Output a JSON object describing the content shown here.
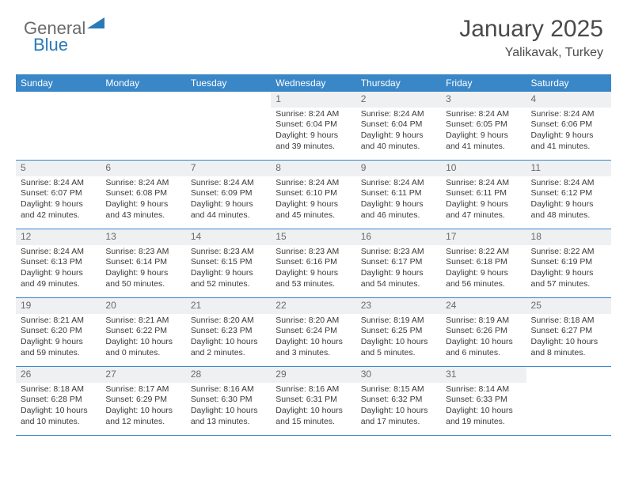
{
  "brand": {
    "part1": "General",
    "part2": "Blue"
  },
  "title": "January 2025",
  "location": "Yalikavak, Turkey",
  "colors": {
    "header_bar": "#3a87c8",
    "header_text": "#ffffff",
    "datenum_bg": "#eef0f2",
    "body_bg": "#ffffff",
    "text": "#3a3a3a",
    "rule": "#3a87c8"
  },
  "day_headers": [
    "Sunday",
    "Monday",
    "Tuesday",
    "Wednesday",
    "Thursday",
    "Friday",
    "Saturday"
  ],
  "layout": {
    "first_weekday_index": 3,
    "days_in_month": 31
  },
  "days": {
    "1": {
      "sunrise": "8:24 AM",
      "sunset": "6:04 PM",
      "daylight": "9 hours and 39 minutes."
    },
    "2": {
      "sunrise": "8:24 AM",
      "sunset": "6:04 PM",
      "daylight": "9 hours and 40 minutes."
    },
    "3": {
      "sunrise": "8:24 AM",
      "sunset": "6:05 PM",
      "daylight": "9 hours and 41 minutes."
    },
    "4": {
      "sunrise": "8:24 AM",
      "sunset": "6:06 PM",
      "daylight": "9 hours and 41 minutes."
    },
    "5": {
      "sunrise": "8:24 AM",
      "sunset": "6:07 PM",
      "daylight": "9 hours and 42 minutes."
    },
    "6": {
      "sunrise": "8:24 AM",
      "sunset": "6:08 PM",
      "daylight": "9 hours and 43 minutes."
    },
    "7": {
      "sunrise": "8:24 AM",
      "sunset": "6:09 PM",
      "daylight": "9 hours and 44 minutes."
    },
    "8": {
      "sunrise": "8:24 AM",
      "sunset": "6:10 PM",
      "daylight": "9 hours and 45 minutes."
    },
    "9": {
      "sunrise": "8:24 AM",
      "sunset": "6:11 PM",
      "daylight": "9 hours and 46 minutes."
    },
    "10": {
      "sunrise": "8:24 AM",
      "sunset": "6:11 PM",
      "daylight": "9 hours and 47 minutes."
    },
    "11": {
      "sunrise": "8:24 AM",
      "sunset": "6:12 PM",
      "daylight": "9 hours and 48 minutes."
    },
    "12": {
      "sunrise": "8:24 AM",
      "sunset": "6:13 PM",
      "daylight": "9 hours and 49 minutes."
    },
    "13": {
      "sunrise": "8:23 AM",
      "sunset": "6:14 PM",
      "daylight": "9 hours and 50 minutes."
    },
    "14": {
      "sunrise": "8:23 AM",
      "sunset": "6:15 PM",
      "daylight": "9 hours and 52 minutes."
    },
    "15": {
      "sunrise": "8:23 AM",
      "sunset": "6:16 PM",
      "daylight": "9 hours and 53 minutes."
    },
    "16": {
      "sunrise": "8:23 AM",
      "sunset": "6:17 PM",
      "daylight": "9 hours and 54 minutes."
    },
    "17": {
      "sunrise": "8:22 AM",
      "sunset": "6:18 PM",
      "daylight": "9 hours and 56 minutes."
    },
    "18": {
      "sunrise": "8:22 AM",
      "sunset": "6:19 PM",
      "daylight": "9 hours and 57 minutes."
    },
    "19": {
      "sunrise": "8:21 AM",
      "sunset": "6:20 PM",
      "daylight": "9 hours and 59 minutes."
    },
    "20": {
      "sunrise": "8:21 AM",
      "sunset": "6:22 PM",
      "daylight": "10 hours and 0 minutes."
    },
    "21": {
      "sunrise": "8:20 AM",
      "sunset": "6:23 PM",
      "daylight": "10 hours and 2 minutes."
    },
    "22": {
      "sunrise": "8:20 AM",
      "sunset": "6:24 PM",
      "daylight": "10 hours and 3 minutes."
    },
    "23": {
      "sunrise": "8:19 AM",
      "sunset": "6:25 PM",
      "daylight": "10 hours and 5 minutes."
    },
    "24": {
      "sunrise": "8:19 AM",
      "sunset": "6:26 PM",
      "daylight": "10 hours and 6 minutes."
    },
    "25": {
      "sunrise": "8:18 AM",
      "sunset": "6:27 PM",
      "daylight": "10 hours and 8 minutes."
    },
    "26": {
      "sunrise": "8:18 AM",
      "sunset": "6:28 PM",
      "daylight": "10 hours and 10 minutes."
    },
    "27": {
      "sunrise": "8:17 AM",
      "sunset": "6:29 PM",
      "daylight": "10 hours and 12 minutes."
    },
    "28": {
      "sunrise": "8:16 AM",
      "sunset": "6:30 PM",
      "daylight": "10 hours and 13 minutes."
    },
    "29": {
      "sunrise": "8:16 AM",
      "sunset": "6:31 PM",
      "daylight": "10 hours and 15 minutes."
    },
    "30": {
      "sunrise": "8:15 AM",
      "sunset": "6:32 PM",
      "daylight": "10 hours and 17 minutes."
    },
    "31": {
      "sunrise": "8:14 AM",
      "sunset": "6:33 PM",
      "daylight": "10 hours and 19 minutes."
    }
  },
  "labels": {
    "sunrise": "Sunrise:",
    "sunset": "Sunset:",
    "daylight": "Daylight:"
  }
}
